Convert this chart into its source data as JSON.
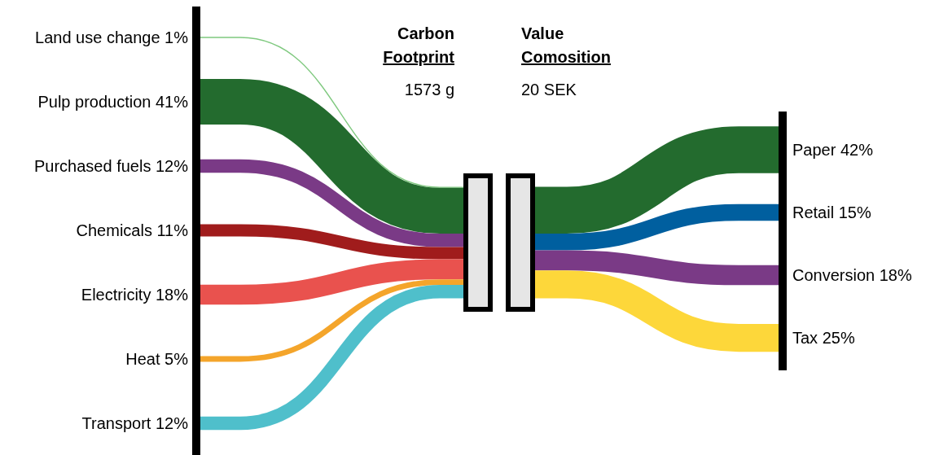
{
  "chart_data": [
    {
      "type": "other",
      "title": "Carbon Footprint",
      "subtitle": "1573 g",
      "categories": [
        "Land use change",
        "Pulp production",
        "Purchased fuels",
        "Chemicals",
        "Electricity",
        "Heat",
        "Transport"
      ],
      "values": [
        1,
        41,
        12,
        11,
        18,
        5,
        12
      ],
      "value_labels": [
        "1%",
        "41%",
        "12%",
        "11%",
        "18%",
        "5%",
        "12%"
      ],
      "colors": [
        "#7fc97f",
        "#236b2e",
        "#7a3a86",
        "#a01c1c",
        "#e9524e",
        "#f4a52b",
        "#4fbfcb"
      ]
    },
    {
      "type": "other",
      "title": "Value Comosition",
      "subtitle": "20 SEK",
      "categories": [
        "Paper",
        "Retail",
        "Conversion",
        "Tax"
      ],
      "values": [
        42,
        15,
        18,
        25
      ],
      "value_labels": [
        "42%",
        "15%",
        "18%",
        "25%"
      ],
      "colors": [
        "#236b2e",
        "#005f9f",
        "#7a3a86",
        "#fdd73a"
      ]
    }
  ]
}
